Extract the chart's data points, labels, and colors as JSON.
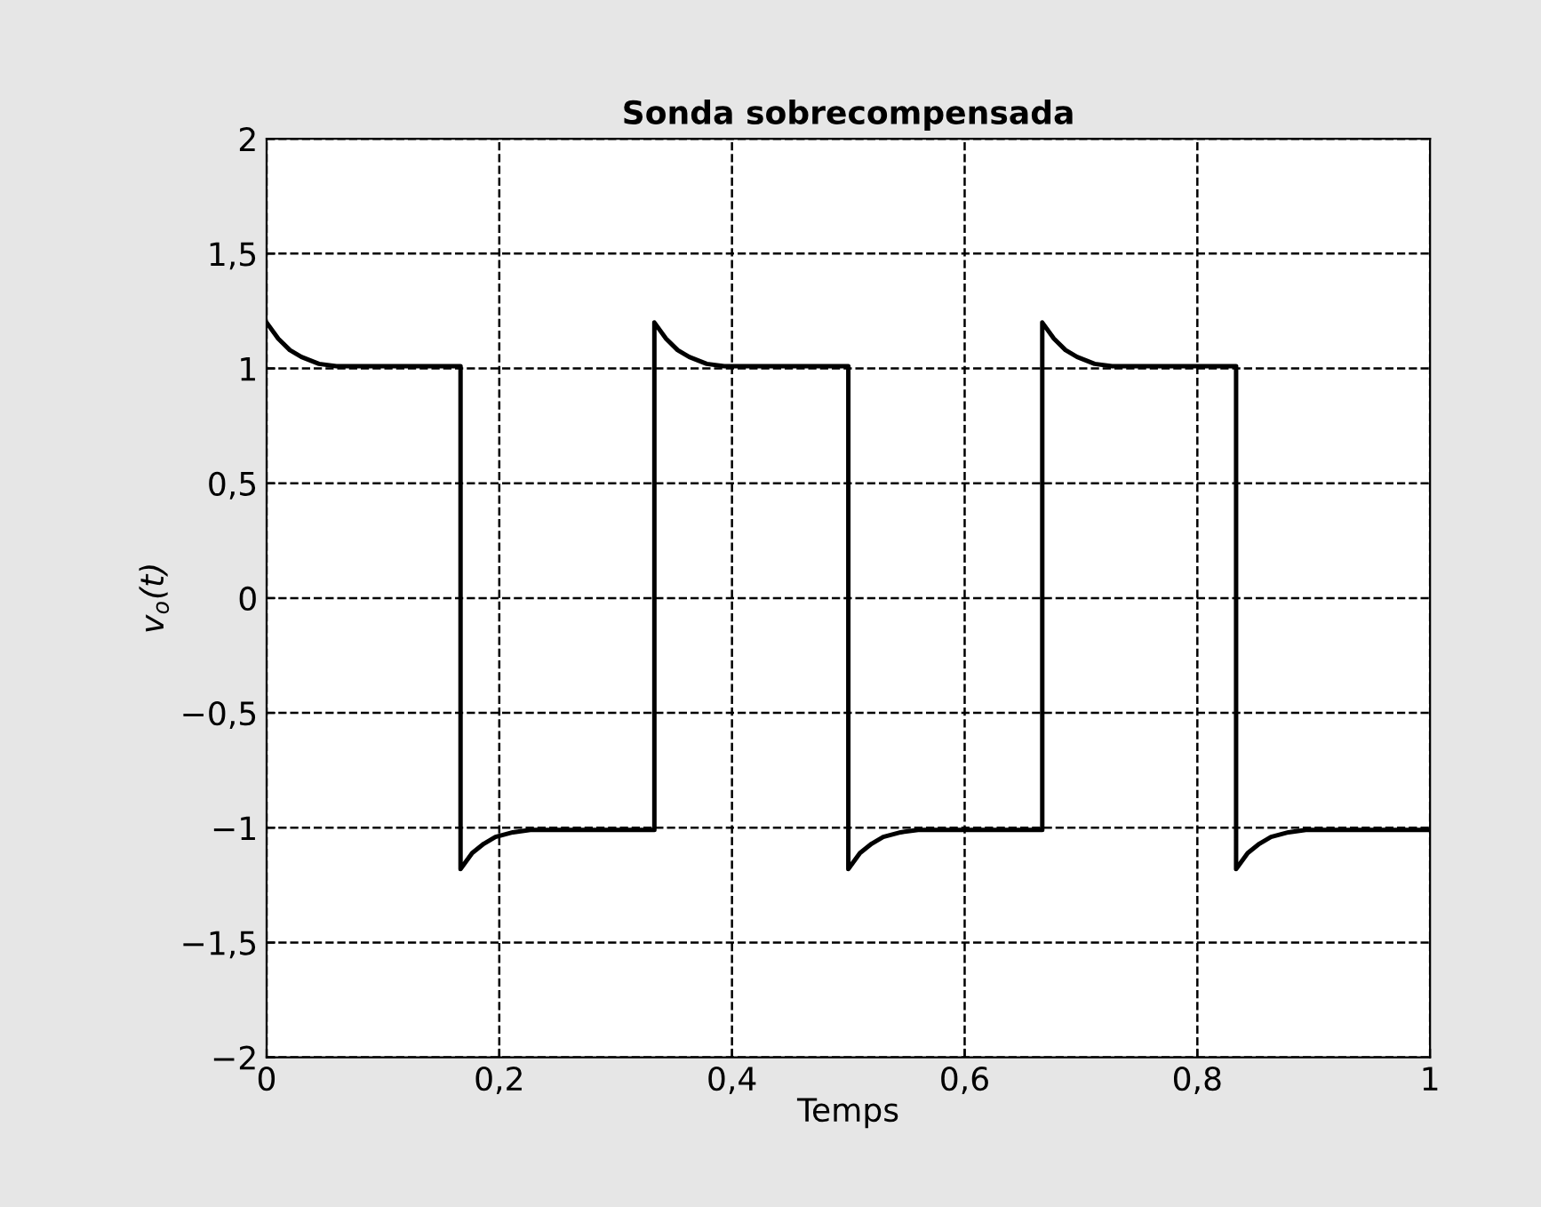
{
  "chart_data": {
    "type": "line",
    "title": "Sonda sobrecompensada",
    "xlabel": "Temps",
    "ylabel": "v$_{o}$(t)",
    "xlim": [
      0,
      1
    ],
    "ylim": [
      -2,
      2
    ],
    "xticks": [
      0,
      {
        "value": 0.2,
        "label": "0,2"
      },
      {
        "value": 0.4,
        "label": "0,4"
      },
      {
        "value": 0.6,
        "label": "0,6"
      },
      {
        "value": 0.8,
        "label": "0,8"
      },
      1
    ],
    "yticks": [
      {
        "value": -2,
        "label": "−2"
      },
      {
        "value": -1.5,
        "label": "−1,5"
      },
      {
        "value": -1,
        "label": "−1"
      },
      {
        "value": -0.5,
        "label": "−0,5"
      },
      0,
      {
        "value": 0.5,
        "label": "0,5"
      },
      1,
      {
        "value": 1.5,
        "label": "1,5"
      },
      2
    ],
    "grid": true,
    "marker": "none",
    "line_style": "solid",
    "series": [
      {
        "color": "#000000",
        "x": [
          0,
          0.01,
          0.02,
          0.03,
          0.045,
          0.06,
          0.1667,
          0.1667,
          0.1767,
          0.1867,
          0.1967,
          0.2117,
          0.2267,
          0.3333,
          0.3333,
          0.3433,
          0.3533,
          0.3633,
          0.3783,
          0.3933,
          0.5,
          0.5,
          0.51,
          0.52,
          0.53,
          0.545,
          0.56,
          0.6667,
          0.6667,
          0.6767,
          0.6867,
          0.6967,
          0.7117,
          0.7267,
          0.8333,
          0.8333,
          0.8433,
          0.8533,
          0.8633,
          0.8783,
          0.8933,
          1
        ],
        "values": [
          1.2,
          1.13,
          1.08,
          1.05,
          1.02,
          1.01,
          1.01,
          -1.18,
          -1.11,
          -1.07,
          -1.04,
          -1.02,
          -1.01,
          -1.01,
          1.2,
          1.13,
          1.08,
          1.05,
          1.02,
          1.01,
          1.01,
          -1.18,
          -1.11,
          -1.07,
          -1.04,
          -1.02,
          -1.01,
          -1.01,
          1.2,
          1.13,
          1.08,
          1.05,
          1.02,
          1.01,
          1.01,
          -1.18,
          -1.11,
          -1.07,
          -1.04,
          -1.02,
          -1.01,
          -1.01
        ]
      }
    ]
  }
}
